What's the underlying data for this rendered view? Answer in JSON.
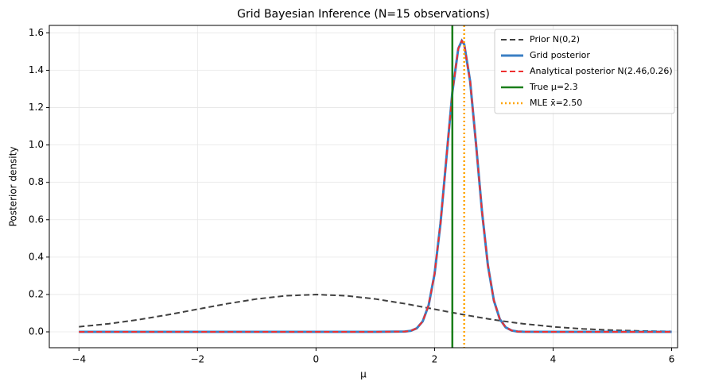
{
  "chart_data": {
    "type": "line",
    "title": "Grid Bayesian Inference (N=15 observations)",
    "xlabel": "μ",
    "ylabel": "Posterior density",
    "x": [
      -4,
      -3.5,
      -3,
      -2.5,
      -2,
      -1.5,
      -1,
      -0.5,
      0,
      0.5,
      1,
      1.5,
      1.6,
      1.7,
      1.8,
      1.9,
      2.0,
      2.1,
      2.2,
      2.3,
      2.4,
      2.46,
      2.5,
      2.6,
      2.7,
      2.8,
      2.9,
      3.0,
      3.1,
      3.2,
      3.3,
      3.4,
      3.5,
      4,
      4.5,
      5,
      5.5,
      6
    ],
    "series": [
      {
        "name": "Prior N(0,2)",
        "color": "#404040",
        "dash": "7,4",
        "width": 2,
        "values": [
          0.027,
          0.0431,
          0.0648,
          0.0913,
          0.121,
          0.1506,
          0.176,
          0.1933,
          0.1995,
          0.1933,
          0.176,
          0.1506,
          0.1448,
          0.139,
          0.133,
          0.127,
          0.121,
          0.115,
          0.1089,
          0.103,
          0.0971,
          0.0936,
          0.0913,
          0.0857,
          0.0802,
          0.0749,
          0.0697,
          0.0648,
          0.06,
          0.0555,
          0.0511,
          0.047,
          0.0431,
          0.027,
          0.0159,
          0.0088,
          0.0045,
          0.0022
        ]
      },
      {
        "name": "Grid posterior",
        "color": "#3b7fc4",
        "dash": "none",
        "width": 3,
        "values": [
          0,
          0,
          0,
          0,
          0,
          0,
          0,
          0,
          0,
          0,
          0,
          0.0014,
          0.0055,
          0.019,
          0.0561,
          0.1424,
          0.3102,
          0.5798,
          0.9305,
          1.2816,
          1.5158,
          1.558,
          1.5392,
          1.3416,
          1.004,
          0.645,
          0.3558,
          0.1684,
          0.0686,
          0.0239,
          0.0072,
          0.0018,
          0.0004,
          0,
          0,
          0,
          0,
          0
        ]
      },
      {
        "name": "Analytical posterior N(2.46,0.26)",
        "color": "#ee3030",
        "dash": "7,4",
        "width": 2,
        "values": [
          0,
          0,
          0,
          0,
          0,
          0,
          0,
          0,
          0,
          0,
          0,
          0.0014,
          0.0055,
          0.019,
          0.0561,
          0.1424,
          0.3102,
          0.5798,
          0.9305,
          1.2816,
          1.5158,
          1.558,
          1.5392,
          1.3416,
          1.004,
          0.645,
          0.3558,
          0.1684,
          0.0686,
          0.0239,
          0.0072,
          0.0018,
          0.0004,
          0,
          0,
          0,
          0,
          0
        ]
      }
    ],
    "vlines": [
      {
        "name": "True μ=2.3",
        "color": "#1a7f1a",
        "dash": "none",
        "width": 2.5,
        "value": 2.3
      },
      {
        "name": "MLE x̄=2.50",
        "color": "#ffa500",
        "dash": "2,3",
        "width": 2.5,
        "value": 2.5
      }
    ],
    "xlim": [
      -4.5,
      6.1
    ],
    "ylim": [
      -0.085,
      1.64
    ],
    "xticks": [
      {
        "value": -4,
        "label": "−4"
      },
      {
        "value": -2,
        "label": "−2"
      },
      0,
      2,
      4,
      6
    ],
    "yticks": [
      {
        "value": 0,
        "label": "0.0"
      },
      {
        "value": 0.2,
        "label": "0.2"
      },
      {
        "value": 0.4,
        "label": "0.4"
      },
      {
        "value": 0.6,
        "label": "0.6"
      },
      {
        "value": 0.8,
        "label": "0.8"
      },
      {
        "value": 1.0,
        "label": "1.0"
      },
      {
        "value": 1.2,
        "label": "1.2"
      },
      {
        "value": 1.4,
        "label": "1.4"
      },
      {
        "value": 1.6,
        "label": "1.6"
      }
    ],
    "grid": true,
    "legend": "upper right"
  }
}
